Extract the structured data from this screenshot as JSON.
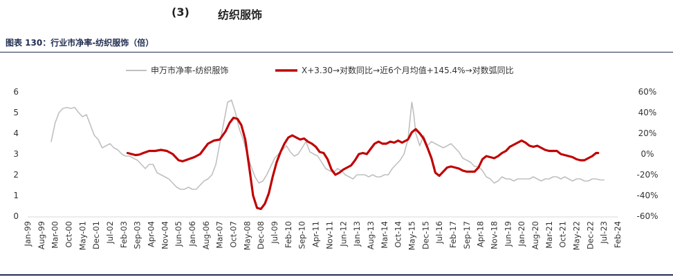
{
  "heading": {
    "number": "(3)",
    "text": "纺织服饰"
  },
  "figure_title": "图表 130：行业市净率-纺织服饰（倍）",
  "colors": {
    "series_gray": "#bfbfbf",
    "series_red": "#c00000",
    "rule": "#1f2d4f"
  },
  "chart_data": {
    "type": "line",
    "title": "",
    "legend_position": "top",
    "grid": false,
    "y_left": {
      "ylim": [
        0,
        6
      ],
      "ticks": [
        "0",
        "1",
        "2",
        "3",
        "4",
        "5",
        "6"
      ]
    },
    "y_right": {
      "ylim": [
        -0.6,
        0.6
      ],
      "ticks": [
        "-60%",
        "-40%",
        "-20%",
        "0%",
        "20%",
        "40%",
        "60%"
      ]
    },
    "x_ticks": [
      "Jan-99",
      "Aug-99",
      "Mar-00",
      "Oct-00",
      "May-01",
      "Dec-01",
      "Jul-02",
      "Feb-03",
      "Sep-03",
      "Apr-04",
      "Nov-04",
      "Jun-05",
      "Jan-06",
      "Aug-06",
      "Mar-07",
      "Oct-07",
      "May-08",
      "Dec-08",
      "Jul-09",
      "Feb-10",
      "Sep-10",
      "Apr-11",
      "Nov-11",
      "Jun-12",
      "Jan-13",
      "Aug-13",
      "Mar-14",
      "Oct-14",
      "May-15",
      "Dec-15",
      "Jul-16",
      "Feb-17",
      "Sep-17",
      "Apr-18",
      "Nov-18",
      "Jun-19",
      "Jan-20",
      "Aug-20",
      "Mar-21",
      "Oct-21",
      "May-22",
      "Dec-22",
      "Jul-23",
      "Feb-24"
    ],
    "series": [
      {
        "name": "申万市净率-纺织服饰",
        "axis": "left",
        "points": [
          [
            "2000-01",
            3.6
          ],
          [
            "2000-03",
            4.5
          ],
          [
            "2000-05",
            5.0
          ],
          [
            "2000-07",
            5.2
          ],
          [
            "2000-09",
            5.25
          ],
          [
            "2000-11",
            5.2
          ],
          [
            "2001-01",
            5.25
          ],
          [
            "2001-03",
            5.0
          ],
          [
            "2001-05",
            4.8
          ],
          [
            "2001-07",
            4.9
          ],
          [
            "2001-09",
            4.4
          ],
          [
            "2001-11",
            3.9
          ],
          [
            "2002-01",
            3.7
          ],
          [
            "2002-03",
            3.3
          ],
          [
            "2002-05",
            3.4
          ],
          [
            "2002-07",
            3.5
          ],
          [
            "2002-09",
            3.3
          ],
          [
            "2002-11",
            3.2
          ],
          [
            "2003-01",
            3.0
          ],
          [
            "2003-03",
            2.9
          ],
          [
            "2003-05",
            2.9
          ],
          [
            "2003-07",
            2.8
          ],
          [
            "2003-09",
            2.7
          ],
          [
            "2003-11",
            2.5
          ],
          [
            "2004-01",
            2.3
          ],
          [
            "2004-03",
            2.5
          ],
          [
            "2004-05",
            2.5
          ],
          [
            "2004-07",
            2.1
          ],
          [
            "2004-09",
            2.0
          ],
          [
            "2004-11",
            1.9
          ],
          [
            "2005-01",
            1.8
          ],
          [
            "2005-03",
            1.6
          ],
          [
            "2005-05",
            1.4
          ],
          [
            "2005-07",
            1.3
          ],
          [
            "2005-09",
            1.3
          ],
          [
            "2005-11",
            1.4
          ],
          [
            "2006-01",
            1.3
          ],
          [
            "2006-03",
            1.3
          ],
          [
            "2006-05",
            1.5
          ],
          [
            "2006-07",
            1.7
          ],
          [
            "2006-09",
            1.8
          ],
          [
            "2006-11",
            2.0
          ],
          [
            "2007-01",
            2.5
          ],
          [
            "2007-03",
            3.5
          ],
          [
            "2007-05",
            4.5
          ],
          [
            "2007-07",
            5.5
          ],
          [
            "2007-09",
            5.6
          ],
          [
            "2007-11",
            5.0
          ],
          [
            "2008-01",
            4.2
          ],
          [
            "2008-03",
            3.7
          ],
          [
            "2008-05",
            3.0
          ],
          [
            "2008-07",
            2.4
          ],
          [
            "2008-09",
            1.9
          ],
          [
            "2008-11",
            1.6
          ],
          [
            "2009-01",
            1.7
          ],
          [
            "2009-03",
            2.0
          ],
          [
            "2009-05",
            2.4
          ],
          [
            "2009-07",
            2.8
          ],
          [
            "2009-09",
            3.0
          ],
          [
            "2009-11",
            3.2
          ],
          [
            "2010-01",
            3.4
          ],
          [
            "2010-03",
            3.1
          ],
          [
            "2010-05",
            2.9
          ],
          [
            "2010-07",
            3.0
          ],
          [
            "2010-09",
            3.3
          ],
          [
            "2010-11",
            3.6
          ],
          [
            "2011-01",
            3.1
          ],
          [
            "2011-03",
            3.0
          ],
          [
            "2011-05",
            2.9
          ],
          [
            "2011-07",
            2.6
          ],
          [
            "2011-09",
            2.3
          ],
          [
            "2011-11",
            2.2
          ],
          [
            "2012-01",
            2.1
          ],
          [
            "2012-03",
            2.3
          ],
          [
            "2012-05",
            2.2
          ],
          [
            "2012-07",
            2.0
          ],
          [
            "2012-09",
            1.9
          ],
          [
            "2012-11",
            1.8
          ],
          [
            "2013-01",
            2.0
          ],
          [
            "2013-03",
            2.0
          ],
          [
            "2013-05",
            2.0
          ],
          [
            "2013-07",
            1.9
          ],
          [
            "2013-09",
            2.0
          ],
          [
            "2013-11",
            1.9
          ],
          [
            "2014-01",
            1.9
          ],
          [
            "2014-03",
            2.0
          ],
          [
            "2014-05",
            2.0
          ],
          [
            "2014-07",
            2.3
          ],
          [
            "2014-09",
            2.5
          ],
          [
            "2014-11",
            2.7
          ],
          [
            "2015-01",
            3.0
          ],
          [
            "2015-03",
            3.7
          ],
          [
            "2015-05",
            5.5
          ],
          [
            "2015-06",
            4.9
          ],
          [
            "2015-07",
            4.0
          ],
          [
            "2015-09",
            3.4
          ],
          [
            "2015-11",
            3.9
          ],
          [
            "2016-01",
            3.4
          ],
          [
            "2016-03",
            3.6
          ],
          [
            "2016-05",
            3.5
          ],
          [
            "2016-07",
            3.4
          ],
          [
            "2016-09",
            3.3
          ],
          [
            "2016-11",
            3.4
          ],
          [
            "2017-01",
            3.5
          ],
          [
            "2017-03",
            3.3
          ],
          [
            "2017-05",
            3.1
          ],
          [
            "2017-07",
            2.8
          ],
          [
            "2017-09",
            2.7
          ],
          [
            "2017-11",
            2.6
          ],
          [
            "2018-01",
            2.4
          ],
          [
            "2018-03",
            2.4
          ],
          [
            "2018-05",
            2.2
          ],
          [
            "2018-07",
            1.9
          ],
          [
            "2018-09",
            1.8
          ],
          [
            "2018-11",
            1.6
          ],
          [
            "2019-01",
            1.7
          ],
          [
            "2019-03",
            1.9
          ],
          [
            "2019-05",
            1.8
          ],
          [
            "2019-07",
            1.8
          ],
          [
            "2019-09",
            1.7
          ],
          [
            "2019-11",
            1.8
          ],
          [
            "2020-01",
            1.8
          ],
          [
            "2020-03",
            1.8
          ],
          [
            "2020-05",
            1.8
          ],
          [
            "2020-07",
            1.9
          ],
          [
            "2020-09",
            1.8
          ],
          [
            "2020-11",
            1.7
          ],
          [
            "2021-01",
            1.8
          ],
          [
            "2021-03",
            1.8
          ],
          [
            "2021-05",
            1.9
          ],
          [
            "2021-07",
            1.9
          ],
          [
            "2021-09",
            1.8
          ],
          [
            "2021-11",
            1.9
          ],
          [
            "2022-01",
            1.8
          ],
          [
            "2022-03",
            1.7
          ],
          [
            "2022-05",
            1.8
          ],
          [
            "2022-07",
            1.8
          ],
          [
            "2022-09",
            1.7
          ],
          [
            "2022-11",
            1.7
          ],
          [
            "2023-01",
            1.8
          ],
          [
            "2023-03",
            1.8
          ],
          [
            "2023-05",
            1.75
          ],
          [
            "2023-07",
            1.75
          ]
        ]
      },
      {
        "name": "X+3.30→对数同比→近6个月均值+145.4%→对数弧同比",
        "axis": "right",
        "points": [
          [
            "2003-04",
            0.01
          ],
          [
            "2003-06",
            0.0
          ],
          [
            "2003-08",
            -0.01
          ],
          [
            "2003-10",
            -0.005
          ],
          [
            "2003-12",
            0.01
          ],
          [
            "2004-03",
            0.03
          ],
          [
            "2004-06",
            0.03
          ],
          [
            "2004-09",
            0.04
          ],
          [
            "2004-12",
            0.03
          ],
          [
            "2005-03",
            0.0
          ],
          [
            "2005-06",
            -0.06
          ],
          [
            "2005-08",
            -0.07
          ],
          [
            "2005-11",
            -0.05
          ],
          [
            "2006-02",
            -0.03
          ],
          [
            "2006-05",
            0.0
          ],
          [
            "2006-07",
            0.05
          ],
          [
            "2006-09",
            0.1
          ],
          [
            "2006-12",
            0.13
          ],
          [
            "2007-03",
            0.14
          ],
          [
            "2007-06",
            0.22
          ],
          [
            "2007-08",
            0.3
          ],
          [
            "2007-10",
            0.35
          ],
          [
            "2007-12",
            0.34
          ],
          [
            "2008-02",
            0.28
          ],
          [
            "2008-04",
            0.14
          ],
          [
            "2008-06",
            -0.12
          ],
          [
            "2008-08",
            -0.4
          ],
          [
            "2008-10",
            -0.52
          ],
          [
            "2008-12",
            -0.53
          ],
          [
            "2009-02",
            -0.48
          ],
          [
            "2009-04",
            -0.38
          ],
          [
            "2009-06",
            -0.22
          ],
          [
            "2009-08",
            -0.08
          ],
          [
            "2009-10",
            0.02
          ],
          [
            "2009-12",
            0.1
          ],
          [
            "2010-02",
            0.16
          ],
          [
            "2010-04",
            0.18
          ],
          [
            "2010-06",
            0.16
          ],
          [
            "2010-08",
            0.14
          ],
          [
            "2010-10",
            0.15
          ],
          [
            "2010-12",
            0.12
          ],
          [
            "2011-02",
            0.1
          ],
          [
            "2011-04",
            0.07
          ],
          [
            "2011-06",
            0.02
          ],
          [
            "2011-08",
            0.01
          ],
          [
            "2011-10",
            -0.05
          ],
          [
            "2011-12",
            -0.15
          ],
          [
            "2012-02",
            -0.2
          ],
          [
            "2012-04",
            -0.18
          ],
          [
            "2012-06",
            -0.15
          ],
          [
            "2012-08",
            -0.13
          ],
          [
            "2012-10",
            -0.11
          ],
          [
            "2012-12",
            -0.06
          ],
          [
            "2013-02",
            0.0
          ],
          [
            "2013-04",
            0.01
          ],
          [
            "2013-06",
            0.0
          ],
          [
            "2013-08",
            0.05
          ],
          [
            "2013-10",
            0.1
          ],
          [
            "2013-12",
            0.12
          ],
          [
            "2014-02",
            0.1
          ],
          [
            "2014-04",
            0.1
          ],
          [
            "2014-06",
            0.12
          ],
          [
            "2014-08",
            0.11
          ],
          [
            "2014-10",
            0.13
          ],
          [
            "2014-12",
            0.11
          ],
          [
            "2015-03",
            0.14
          ],
          [
            "2015-05",
            0.21
          ],
          [
            "2015-07",
            0.24
          ],
          [
            "2015-09",
            0.2
          ],
          [
            "2015-11",
            0.15
          ],
          [
            "2016-01",
            0.06
          ],
          [
            "2016-03",
            -0.04
          ],
          [
            "2016-05",
            -0.18
          ],
          [
            "2016-07",
            -0.21
          ],
          [
            "2016-09",
            -0.17
          ],
          [
            "2016-11",
            -0.13
          ],
          [
            "2017-01",
            -0.12
          ],
          [
            "2017-03",
            -0.13
          ],
          [
            "2017-05",
            -0.14
          ],
          [
            "2017-07",
            -0.16
          ],
          [
            "2017-09",
            -0.17
          ],
          [
            "2017-11",
            -0.17
          ],
          [
            "2018-01",
            -0.17
          ],
          [
            "2018-03",
            -0.13
          ],
          [
            "2018-05",
            -0.05
          ],
          [
            "2018-07",
            -0.02
          ],
          [
            "2018-09",
            -0.03
          ],
          [
            "2018-11",
            -0.04
          ],
          [
            "2019-01",
            -0.02
          ],
          [
            "2019-03",
            0.01
          ],
          [
            "2019-05",
            0.03
          ],
          [
            "2019-07",
            0.07
          ],
          [
            "2019-09",
            0.09
          ],
          [
            "2019-11",
            0.11
          ],
          [
            "2020-01",
            0.13
          ],
          [
            "2020-03",
            0.11
          ],
          [
            "2020-05",
            0.08
          ],
          [
            "2020-07",
            0.07
          ],
          [
            "2020-09",
            0.08
          ],
          [
            "2020-11",
            0.06
          ],
          [
            "2021-01",
            0.04
          ],
          [
            "2021-03",
            0.03
          ],
          [
            "2021-05",
            0.03
          ],
          [
            "2021-07",
            0.03
          ],
          [
            "2021-09",
            0.0
          ],
          [
            "2021-11",
            -0.01
          ],
          [
            "2022-01",
            -0.02
          ],
          [
            "2022-03",
            -0.03
          ],
          [
            "2022-05",
            -0.05
          ],
          [
            "2022-07",
            -0.06
          ],
          [
            "2022-09",
            -0.06
          ],
          [
            "2022-11",
            -0.04
          ],
          [
            "2023-01",
            -0.02
          ],
          [
            "2023-03",
            0.01
          ],
          [
            "2023-04",
            0.01
          ]
        ]
      }
    ]
  }
}
